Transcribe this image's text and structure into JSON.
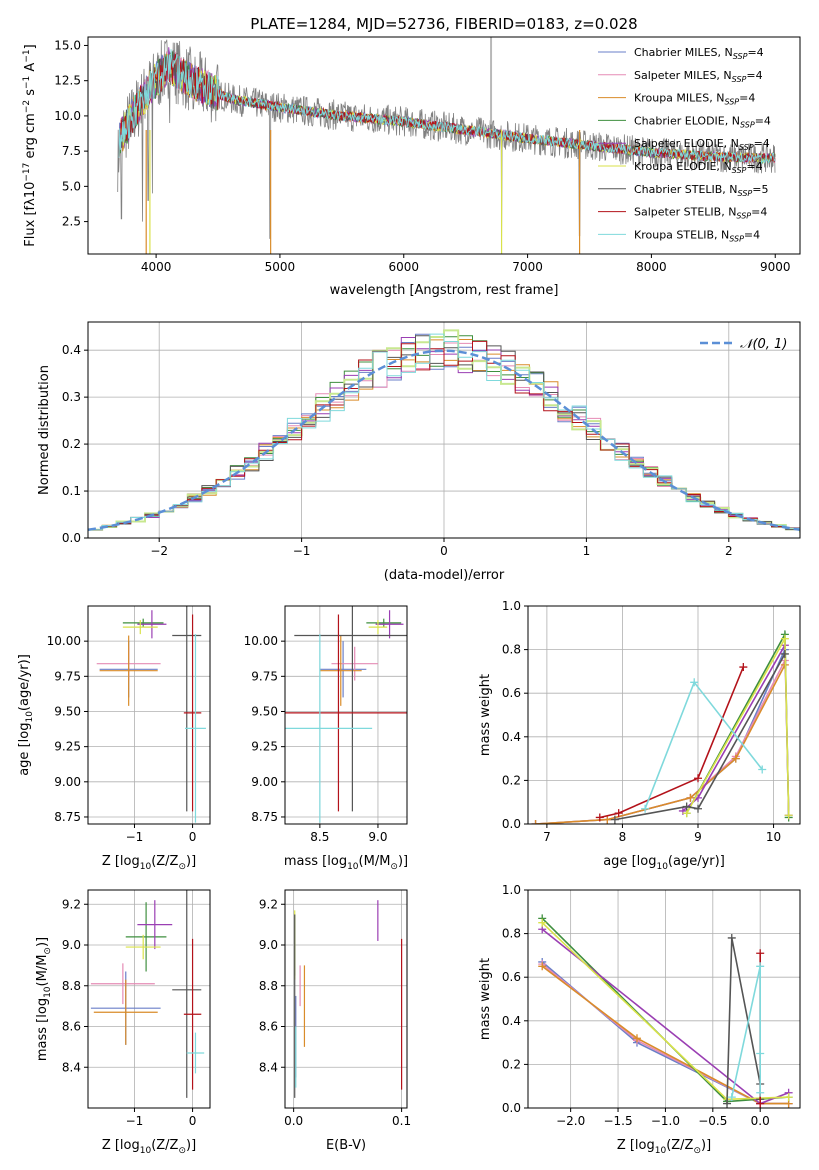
{
  "figure": {
    "title": "PLATE=1284, MJD=52736, FIBERID=0183, z=0.028",
    "series_colors": {
      "Chabrier MILES": "#6a7fc8",
      "Salpeter MILES": "#e58bb5",
      "Kroupa MILES": "#d98c2a",
      "Chabrier ELODIE": "#3f8f3f",
      "Salpeter ELODIE": "#9a3fb3",
      "Kroupa ELODIE": "#d9e24a",
      "Chabrier STELIB": "#555555",
      "Salpeter STELIB": "#b3121a",
      "Kroupa STELIB": "#7fd9dc"
    }
  },
  "chart_data": [
    {
      "type": "line",
      "xlabel": "wavelength [Angstrom, rest frame]",
      "ylabel_parts": [
        "Flux [f",
        "λ",
        "10",
        "−17",
        " erg cm",
        "−2",
        " s",
        "−1",
        " A",
        "−1",
        "]"
      ],
      "xlim": [
        3450,
        9200
      ],
      "ylim": [
        0.2,
        15.6
      ],
      "xticks": [
        4000,
        5000,
        6000,
        7000,
        8000,
        9000
      ],
      "yticks": [
        2.5,
        5.0,
        7.5,
        10.0,
        12.5,
        15.0
      ],
      "legend_position": "top-right",
      "legend": [
        {
          "name": "Chabrier MILES, N",
          "sub": "SSP",
          "suffix": "=4"
        },
        {
          "name": "Salpeter MILES, N",
          "sub": "SSP",
          "suffix": "=4"
        },
        {
          "name": "Kroupa MILES, N",
          "sub": "SSP",
          "suffix": "=4"
        },
        {
          "name": "Chabrier ELODIE, N",
          "sub": "SSP",
          "suffix": "=4"
        },
        {
          "name": "Salpeter ELODIE, N",
          "sub": "SSP",
          "suffix": "=4"
        },
        {
          "name": "Kroupa ELODIE, N",
          "sub": "SSP",
          "suffix": "=4"
        },
        {
          "name": "Chabrier STELIB, N",
          "sub": "SSP",
          "suffix": "=5"
        },
        {
          "name": "Salpeter STELIB, N",
          "sub": "SSP",
          "suffix": "=4"
        },
        {
          "name": "Kroupa STELIB, N",
          "sub": "SSP",
          "suffix": "=4"
        }
      ],
      "continuum": [
        [
          3700,
          8.3
        ],
        [
          3800,
          9.8
        ],
        [
          3950,
          12.0
        ],
        [
          4100,
          13.6
        ],
        [
          4300,
          12.4
        ],
        [
          4600,
          11.2
        ],
        [
          5000,
          10.6
        ],
        [
          5500,
          10.0
        ],
        [
          6000,
          9.6
        ],
        [
          6500,
          9.0
        ],
        [
          7000,
          8.4
        ],
        [
          7500,
          7.9
        ],
        [
          8000,
          7.4
        ],
        [
          8500,
          7.1
        ],
        [
          9000,
          7.0
        ]
      ],
      "absorption_dips": [
        [
          3720,
          1.7
        ],
        [
          3890,
          1.5
        ],
        [
          3935,
          3.0
        ],
        [
          3970,
          3.5
        ],
        [
          4110,
          8.5
        ],
        [
          4300,
          9.5
        ],
        [
          4920,
          0.3
        ],
        [
          5175,
          9.0
        ],
        [
          5895,
          8.5
        ],
        [
          6560,
          7.5
        ],
        [
          6790,
          0.3
        ],
        [
          7420,
          0.5
        ],
        [
          8545,
          6.5
        ],
        [
          8665,
          6.0
        ]
      ]
    },
    {
      "type": "line",
      "xlabel": "(data-model)/error",
      "ylabel": "Normed distribution",
      "xlim": [
        -2.5,
        2.5
      ],
      "ylim": [
        0,
        0.46
      ],
      "xticks": [
        -2,
        -1,
        0,
        1,
        2
      ],
      "yticks": [
        0.0,
        0.1,
        0.2,
        0.3,
        0.4
      ],
      "grid": true,
      "legend_position": "top-right",
      "normal_curve_label": "𝒩(0, 1)",
      "normal_curve_color": "#5b8fd6",
      "bin_width": 0.1
    },
    {
      "type": "scatter",
      "xlabel_parts": [
        "Z [log",
        "10",
        "(Z/Z",
        "⊙",
        ")]"
      ],
      "ylabel_parts": [
        "age  [log",
        "10",
        "(age/yr)]"
      ],
      "xlim": [
        -1.8,
        0.3
      ],
      "ylim": [
        8.7,
        10.25
      ],
      "xticks": [
        -1,
        0
      ],
      "yticks": [
        8.75,
        9.0,
        9.25,
        9.5,
        9.75,
        10.0
      ],
      "grid": true,
      "points": [
        {
          "series": "Chabrier MILES",
          "x": -1.1,
          "y": 9.8,
          "xerr": 0.5,
          "yerr": 0.2
        },
        {
          "series": "Salpeter MILES",
          "x": -1.1,
          "y": 9.84,
          "xerr": 0.55,
          "yerr": 0.12
        },
        {
          "series": "Kroupa MILES",
          "x": -1.1,
          "y": 9.79,
          "xerr": 0.5,
          "yerr": 0.25
        },
        {
          "series": "Chabrier ELODIE",
          "x": -0.85,
          "y": 10.13,
          "xerr": 0.35,
          "yerr": 0.03
        },
        {
          "series": "Salpeter ELODIE",
          "x": -0.7,
          "y": 10.12,
          "xerr": 0.25,
          "yerr": 0.1
        },
        {
          "series": "Kroupa ELODIE",
          "x": -0.9,
          "y": 10.1,
          "xerr": 0.3,
          "yerr": 0.05
        },
        {
          "series": "Chabrier STELIB",
          "x": -0.1,
          "y": 10.04,
          "xerr": 0.25,
          "yerr": 1.25
        },
        {
          "series": "Salpeter STELIB",
          "x": 0.0,
          "y": 9.49,
          "xerr": 0.15,
          "yerr": 0.7
        },
        {
          "series": "Kroupa STELIB",
          "x": 0.05,
          "y": 9.38,
          "xerr": 0.18,
          "yerr": 0.67
        }
      ]
    },
    {
      "type": "scatter",
      "xlabel_parts": [
        "mass [log",
        "10",
        "(M/M",
        "⊙",
        ")]"
      ],
      "ylabel": "",
      "xlim": [
        8.2,
        9.25
      ],
      "ylim": [
        8.7,
        10.25
      ],
      "xticks": [
        8.5,
        9.0
      ],
      "yticks": [
        8.75,
        9.0,
        9.25,
        9.5,
        9.75,
        10.0
      ],
      "grid": true,
      "points": [
        {
          "series": "Chabrier MILES",
          "x": 8.7,
          "y": 9.8,
          "xerr": 0.2,
          "yerr": 0.2
        },
        {
          "series": "Salpeter MILES",
          "x": 8.8,
          "y": 9.84,
          "xerr": 0.2,
          "yerr": 0.12
        },
        {
          "series": "Kroupa MILES",
          "x": 8.68,
          "y": 9.79,
          "xerr": 0.18,
          "yerr": 0.25
        },
        {
          "series": "Chabrier ELODIE",
          "x": 9.05,
          "y": 10.13,
          "xerr": 0.15,
          "yerr": 0.03
        },
        {
          "series": "Salpeter ELODIE",
          "x": 9.1,
          "y": 10.12,
          "xerr": 0.12,
          "yerr": 0.1
        },
        {
          "series": "Kroupa ELODIE",
          "x": 9.0,
          "y": 10.1,
          "xerr": 0.08,
          "yerr": 0.05
        },
        {
          "series": "Chabrier STELIB",
          "x": 8.78,
          "y": 10.04,
          "xerr": 0.5,
          "yerr": 1.25
        },
        {
          "series": "Salpeter STELIB",
          "x": 8.66,
          "y": 9.49,
          "xerr": 0.6,
          "yerr": 0.7
        },
        {
          "series": "Kroupa STELIB",
          "x": 8.5,
          "y": 9.38,
          "xerr": 0.45,
          "yerr": 0.67
        }
      ]
    },
    {
      "type": "line",
      "xlabel_parts": [
        "age  [log",
        "10",
        "(age/yr)]"
      ],
      "ylabel": "mass weight",
      "xlim": [
        6.75,
        10.35
      ],
      "ylim": [
        0,
        1.0
      ],
      "xticks": [
        7,
        8,
        9,
        10
      ],
      "yticks": [
        0.0,
        0.2,
        0.4,
        0.6,
        0.8,
        1.0
      ],
      "grid": true,
      "series": [
        {
          "name": "Chabrier MILES",
          "points": [
            [
              6.85,
              0.0
            ],
            [
              7.8,
              0.02
            ],
            [
              8.9,
              0.12
            ],
            [
              9.5,
              0.3
            ],
            [
              10.15,
              0.8
            ]
          ]
        },
        {
          "name": "Salpeter MILES",
          "points": [
            [
              6.85,
              0.0
            ],
            [
              7.8,
              0.02
            ],
            [
              8.9,
              0.12
            ],
            [
              9.5,
              0.31
            ],
            [
              10.15,
              0.75
            ]
          ]
        },
        {
          "name": "Kroupa MILES",
          "points": [
            [
              6.85,
              0.0
            ],
            [
              7.8,
              0.02
            ],
            [
              8.9,
              0.12
            ],
            [
              9.5,
              0.3
            ],
            [
              10.15,
              0.73
            ]
          ]
        },
        {
          "name": "Chabrier ELODIE",
          "points": [
            [
              8.85,
              0.05
            ],
            [
              10.15,
              0.87
            ],
            [
              10.2,
              0.03
            ]
          ]
        },
        {
          "name": "Salpeter ELODIE",
          "points": [
            [
              8.8,
              0.06
            ],
            [
              9.0,
              0.12
            ],
            [
              10.15,
              0.82
            ],
            [
              10.2,
              0.04
            ]
          ]
        },
        {
          "name": "Kroupa ELODIE",
          "points": [
            [
              8.85,
              0.05
            ],
            [
              10.15,
              0.85
            ],
            [
              10.2,
              0.04
            ]
          ]
        },
        {
          "name": "Chabrier STELIB",
          "points": [
            [
              7.9,
              0.02
            ],
            [
              8.85,
              0.08
            ],
            [
              9.0,
              0.07
            ],
            [
              10.15,
              0.78
            ]
          ]
        },
        {
          "name": "Salpeter STELIB",
          "points": [
            [
              7.7,
              0.03
            ],
            [
              7.95,
              0.05
            ],
            [
              9.0,
              0.21
            ],
            [
              9.6,
              0.72
            ]
          ]
        },
        {
          "name": "Kroupa STELIB",
          "points": [
            [
              8.3,
              0.07
            ],
            [
              8.95,
              0.65
            ],
            [
              9.85,
              0.25
            ]
          ]
        }
      ]
    },
    {
      "type": "scatter",
      "xlabel_parts": [
        "Z [log",
        "10",
        "(Z/Z",
        "⊙",
        ")]"
      ],
      "ylabel_parts": [
        "mass [log",
        "10",
        "(M/M",
        "⊙",
        ")]"
      ],
      "xlim": [
        -1.8,
        0.3
      ],
      "ylim": [
        8.2,
        9.27
      ],
      "xticks": [
        -1,
        0
      ],
      "yticks": [
        8.4,
        8.6,
        8.8,
        9.0,
        9.2
      ],
      "grid": true,
      "points": [
        {
          "series": "Chabrier MILES",
          "x": -1.15,
          "y": 8.69,
          "xerr": 0.6,
          "yerr": 0.18
        },
        {
          "series": "Salpeter MILES",
          "x": -1.2,
          "y": 8.81,
          "xerr": 0.55,
          "yerr": 0.1
        },
        {
          "series": "Kroupa MILES",
          "x": -1.15,
          "y": 8.67,
          "xerr": 0.55,
          "yerr": 0.16
        },
        {
          "series": "Chabrier ELODIE",
          "x": -0.8,
          "y": 9.04,
          "xerr": 0.35,
          "yerr": 0.17
        },
        {
          "series": "Salpeter ELODIE",
          "x": -0.65,
          "y": 9.1,
          "xerr": 0.3,
          "yerr": 0.12
        },
        {
          "series": "Kroupa ELODIE",
          "x": -0.85,
          "y": 8.99,
          "xerr": 0.3,
          "yerr": 0.06
        },
        {
          "series": "Chabrier STELIB",
          "x": -0.1,
          "y": 8.78,
          "xerr": 0.25,
          "yerr": 0.53
        },
        {
          "series": "Salpeter STELIB",
          "x": 0.0,
          "y": 8.66,
          "xerr": 0.15,
          "yerr": 0.37
        },
        {
          "series": "Kroupa STELIB",
          "x": 0.05,
          "y": 8.47,
          "xerr": 0.15,
          "yerr": 0.1
        }
      ]
    },
    {
      "type": "scatter",
      "xlabel": "E(B-V)",
      "ylabel": "",
      "xlim": [
        -0.008,
        0.105
      ],
      "ylim": [
        8.2,
        9.27
      ],
      "xticks": [
        0.0,
        0.1
      ],
      "yticks": [
        8.4,
        8.6,
        8.8,
        9.0,
        9.2
      ],
      "grid": true,
      "points": [
        {
          "series": "Chabrier MILES",
          "x": 0.002,
          "y": 8.55,
          "xerr": 0,
          "yerr": 0.2
        },
        {
          "series": "Salpeter MILES",
          "x": 0.006,
          "y": 8.8,
          "xerr": 0,
          "yerr": 0.1
        },
        {
          "series": "Kroupa MILES",
          "x": 0.01,
          "y": 8.7,
          "xerr": 0,
          "yerr": 0.2
        },
        {
          "series": "Chabrier ELODIE",
          "x": 0.001,
          "y": 9.0,
          "xerr": 0,
          "yerr": 0.15
        },
        {
          "series": "Salpeter ELODIE",
          "x": 0.078,
          "y": 9.12,
          "xerr": 0,
          "yerr": 0.1
        },
        {
          "series": "Kroupa ELODIE",
          "x": 0.001,
          "y": 9.0,
          "xerr": 0,
          "yerr": 0.17
        },
        {
          "series": "Chabrier STELIB",
          "x": 0.001,
          "y": 8.7,
          "xerr": 0,
          "yerr": 0.45
        },
        {
          "series": "Salpeter STELIB",
          "x": 0.1,
          "y": 8.66,
          "xerr": 0,
          "yerr": 0.37
        },
        {
          "series": "Kroupa STELIB",
          "x": 0.002,
          "y": 8.45,
          "xerr": 0,
          "yerr": 0.15
        }
      ]
    },
    {
      "type": "line",
      "xlabel_parts": [
        "Z [log",
        "10",
        "(Z/Z",
        "⊙",
        ")]"
      ],
      "ylabel": "mass weight",
      "xlim": [
        -2.45,
        0.42
      ],
      "ylim": [
        0,
        1.0
      ],
      "xticks": [
        -2.0,
        -1.5,
        -1.0,
        -0.5,
        0.0
      ],
      "yticks": [
        0.0,
        0.2,
        0.4,
        0.6,
        0.8,
        1.0
      ],
      "grid": true,
      "series": [
        {
          "name": "Chabrier MILES",
          "points": [
            [
              -2.3,
              0.67
            ],
            [
              -1.3,
              0.3
            ],
            [
              0.0,
              0.02
            ],
            [
              0.3,
              0.02
            ]
          ]
        },
        {
          "name": "Salpeter MILES",
          "points": [
            [
              -2.3,
              0.66
            ],
            [
              -1.3,
              0.31
            ],
            [
              0.0,
              0.02
            ],
            [
              0.3,
              0.02
            ]
          ]
        },
        {
          "name": "Kroupa MILES",
          "points": [
            [
              -2.3,
              0.65
            ],
            [
              -1.3,
              0.32
            ],
            [
              0.0,
              0.02
            ],
            [
              0.3,
              0.02
            ]
          ]
        },
        {
          "name": "Chabrier ELODIE",
          "points": [
            [
              -2.3,
              0.87
            ],
            [
              -0.35,
              0.03
            ],
            [
              0.3,
              0.05
            ]
          ]
        },
        {
          "name": "Salpeter ELODIE",
          "points": [
            [
              -2.3,
              0.82
            ],
            [
              0.0,
              0.02
            ],
            [
              0.3,
              0.07
            ]
          ]
        },
        {
          "name": "Kroupa ELODIE",
          "points": [
            [
              -2.3,
              0.85
            ],
            [
              -0.35,
              0.04
            ],
            [
              0.3,
              0.05
            ]
          ]
        },
        {
          "name": "Chabrier STELIB",
          "points": [
            [
              -0.35,
              0.02
            ],
            [
              -0.3,
              0.78
            ],
            [
              0.0,
              0.11
            ],
            [
              0.0,
              0.04
            ]
          ]
        },
        {
          "name": "Salpeter STELIB",
          "points": [
            [
              0.0,
              0.71
            ],
            [
              0.0,
              0.02
            ]
          ]
        },
        {
          "name": "Kroupa STELIB",
          "points": [
            [
              -0.3,
              0.05
            ],
            [
              0.0,
              0.65
            ],
            [
              0.0,
              0.25
            ],
            [
              0.0,
              0.07
            ]
          ]
        }
      ]
    }
  ]
}
